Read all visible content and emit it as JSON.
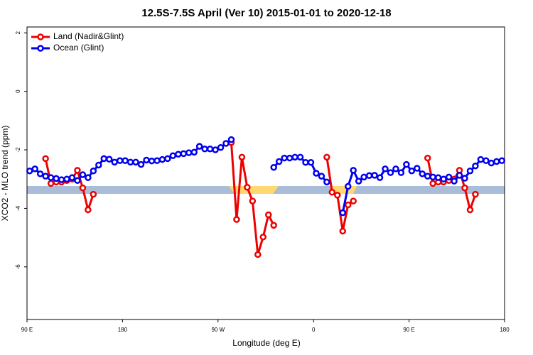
{
  "chart_data": {
    "type": "line",
    "title": "12.5S-7.5S April (Ver 10)   2015-01-01 to 2020-12-18",
    "x_label": "Longitude (deg E)",
    "y_label": "XCO2 - MLO trend (ppm)",
    "x": [
      92.5,
      97.5,
      102.5,
      107.5,
      112.5,
      117.5,
      122.5,
      127.5,
      132.5,
      137.5,
      142.5,
      147.5,
      152.5,
      157.5,
      162.5,
      167.5,
      172.5,
      177.5,
      182.5,
      187.5,
      192.5,
      197.5,
      202.5,
      207.5,
      212.5,
      217.5,
      222.5,
      227.5,
      232.5,
      237.5,
      242.5,
      247.5,
      252.5,
      257.5,
      262.5,
      267.5,
      272.5,
      277.5,
      282.5,
      287.5,
      292.5,
      297.5,
      302.5,
      307.5,
      312.5,
      317.5,
      322.5,
      327.5,
      332.5,
      337.5,
      342.5,
      347.5,
      352.5,
      357.5,
      362.5,
      367.5,
      372.5,
      377.5,
      382.5,
      387.5,
      392.5,
      397.5,
      402.5,
      407.5,
      412.5,
      417.5,
      422.5,
      427.5,
      432.5,
      437.5,
      442.5,
      447.5,
      452.5,
      457.5,
      462.5,
      467.5,
      472.5,
      477.5,
      482.5,
      487.5,
      492.5,
      497.5,
      502.5,
      507.5,
      512.5,
      517.5,
      522.5,
      527.5,
      532.5,
      537.5
    ],
    "series": [
      {
        "name": "Land (Nadir&Glint)",
        "color": "#ee0000",
        "values": [
          null,
          null,
          null,
          -2.3,
          -3.15,
          -3.1,
          -3.1,
          -3.05,
          -3.0,
          -2.7,
          -3.3,
          -4.05,
          -3.52,
          null,
          null,
          null,
          null,
          null,
          null,
          null,
          null,
          null,
          null,
          null,
          null,
          null,
          null,
          null,
          null,
          null,
          null,
          null,
          null,
          null,
          null,
          null,
          null,
          null,
          -1.75,
          -4.38,
          -2.25,
          -3.28,
          -3.75,
          -5.58,
          -4.98,
          -4.22,
          -4.58,
          null,
          null,
          null,
          null,
          null,
          null,
          null,
          null,
          null,
          -2.25,
          -3.45,
          -3.55,
          -4.78,
          -3.88,
          -3.75,
          null,
          null,
          null,
          null,
          null,
          null,
          null,
          null,
          null,
          null,
          null,
          null,
          null,
          -2.28,
          -3.15,
          -3.1,
          -3.1,
          -3.05,
          -3.0,
          -2.7,
          -3.3,
          -4.05,
          -3.52,
          null,
          null,
          null,
          null,
          null
        ]
      },
      {
        "name": "Ocean (Glint)",
        "color": "#0000ee",
        "values": [
          -2.72,
          -2.65,
          -2.82,
          -2.9,
          -2.95,
          -2.98,
          -3.02,
          -3.0,
          -2.95,
          -3.05,
          -2.85,
          -2.95,
          -2.72,
          -2.52,
          -2.3,
          -2.32,
          -2.42,
          -2.37,
          -2.37,
          -2.42,
          -2.42,
          -2.5,
          -2.35,
          -2.38,
          -2.37,
          -2.33,
          -2.3,
          -2.2,
          -2.15,
          -2.13,
          -2.1,
          -2.08,
          -1.88,
          -1.97,
          -1.97,
          -2.0,
          -1.92,
          -1.78,
          -1.65,
          null,
          null,
          null,
          null,
          null,
          null,
          null,
          -2.6,
          -2.4,
          -2.28,
          -2.28,
          -2.25,
          -2.25,
          -2.43,
          -2.43,
          -2.8,
          -2.9,
          -3.1,
          null,
          null,
          -4.15,
          -3.25,
          -2.7,
          -3.07,
          -2.93,
          -2.88,
          -2.87,
          -2.95,
          -2.65,
          -2.78,
          -2.65,
          -2.78,
          -2.5,
          -2.72,
          -2.63,
          -2.82,
          -2.9,
          -2.93,
          -2.95,
          -3.0,
          -2.93,
          -3.07,
          -2.87,
          -2.97,
          -2.72,
          -2.55,
          -2.33,
          -2.37,
          -2.45,
          -2.4,
          -2.37
        ]
      }
    ],
    "xlim": [
      90,
      540
    ],
    "xticks": [
      {
        "value": 90,
        "label": "90 E"
      },
      {
        "value": 180,
        "label": "180"
      },
      {
        "value": 270,
        "label": "90 W"
      },
      {
        "value": 360,
        "label": "0"
      },
      {
        "value": 450,
        "label": "90 E"
      },
      {
        "value": 540,
        "label": "180"
      }
    ],
    "ylim": [
      -7.8,
      2.2
    ],
    "yticks": [
      -6,
      -4,
      -2,
      0,
      2
    ],
    "legend": "top-left"
  }
}
